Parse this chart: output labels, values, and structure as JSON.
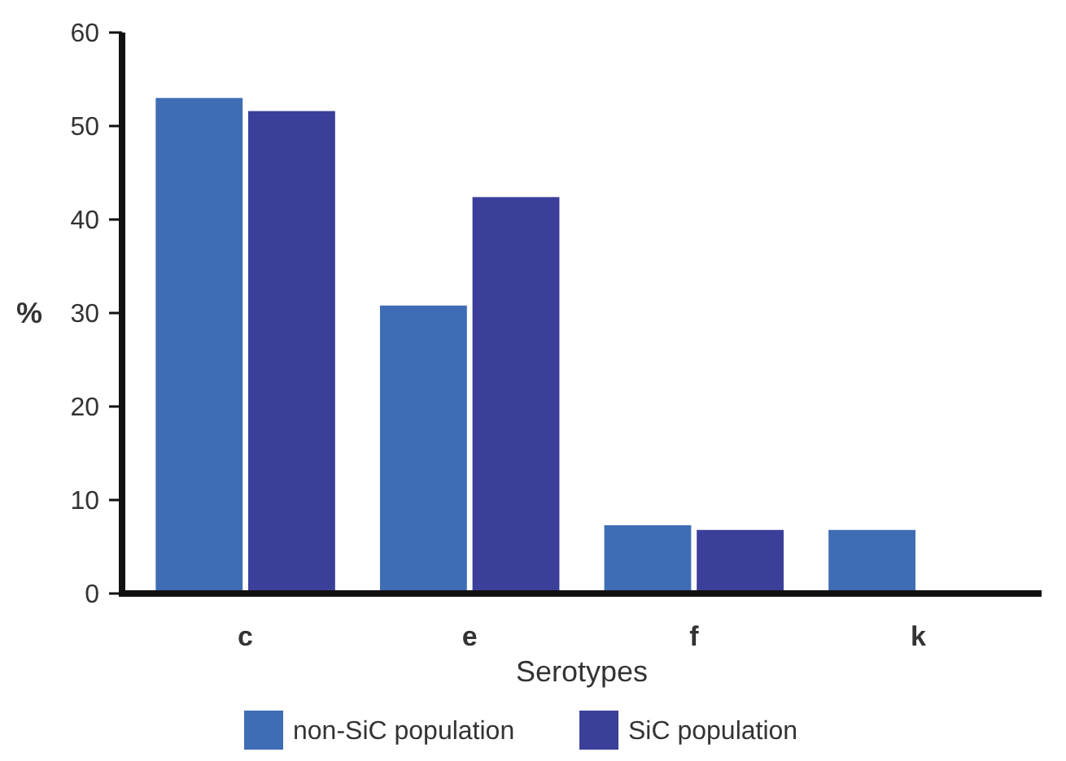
{
  "chart_data": {
    "type": "bar",
    "xlabel": "Serotypes",
    "ylabel": "%",
    "categories": [
      "c",
      "e",
      "f",
      "k"
    ],
    "series": [
      {
        "name": "non-SiC population",
        "color": "#3f6db5",
        "values": [
          53,
          30.8,
          7.3,
          6.8
        ]
      },
      {
        "name": "SiC population",
        "color": "#3b3f9a",
        "values": [
          51.6,
          42.4,
          6.8,
          null
        ]
      }
    ],
    "ylim": [
      0,
      60
    ],
    "yticks": [
      0,
      10,
      20,
      30,
      40,
      50,
      60
    ],
    "grid": false,
    "legend": "bottom"
  }
}
